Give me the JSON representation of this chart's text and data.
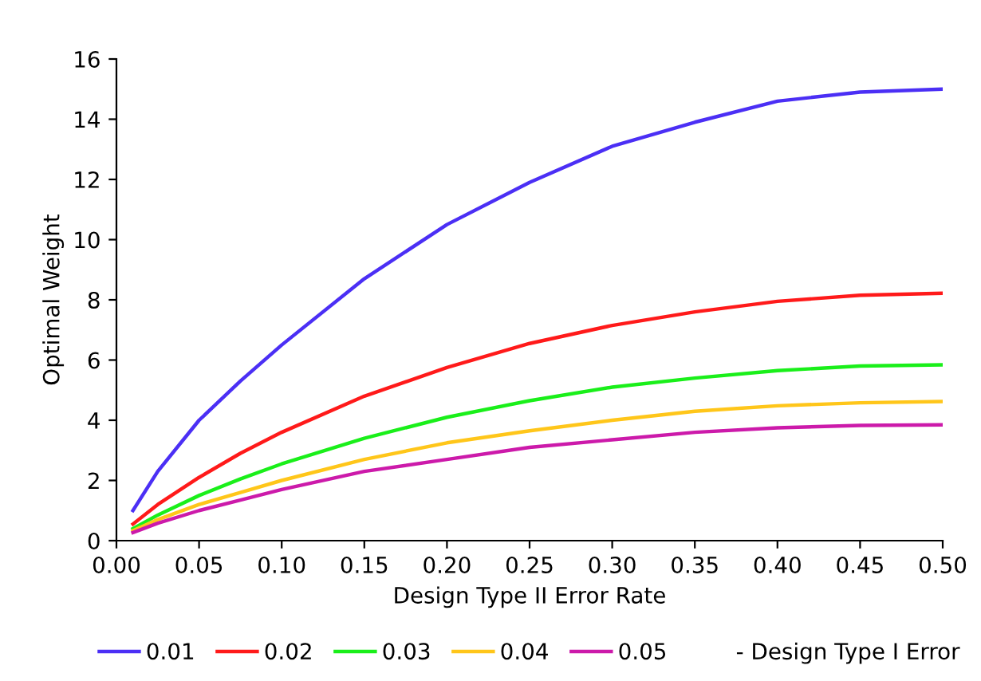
{
  "chart_data": {
    "type": "line",
    "xlabel": "Design Type II Error Rate",
    "ylabel": "Optimal Weight",
    "legend_title": "- Design Type I Error",
    "legend": "bottom",
    "grid": false,
    "marker": "none",
    "line_style": "solid",
    "x": [
      0.01,
      0.025,
      0.05,
      0.075,
      0.1,
      0.15,
      0.2,
      0.25,
      0.3,
      0.35,
      0.4,
      0.45,
      0.5
    ],
    "xlim": [
      0,
      0.5
    ],
    "xticks": [
      {
        "value": 0,
        "label": "0.00"
      },
      {
        "value": 0.05,
        "label": "0.05"
      },
      {
        "value": 0.1,
        "label": "0.10"
      },
      {
        "value": 0.15,
        "label": "0.15"
      },
      {
        "value": 0.2,
        "label": "0.20"
      },
      {
        "value": 0.25,
        "label": "0.25"
      },
      {
        "value": 0.3,
        "label": "0.30"
      },
      {
        "value": 0.35,
        "label": "0.35"
      },
      {
        "value": 0.4,
        "label": "0.40"
      },
      {
        "value": 0.45,
        "label": "0.45"
      },
      {
        "value": 0.5,
        "label": "0.50"
      }
    ],
    "ylim": [
      0,
      16
    ],
    "yticks": [
      0,
      2,
      4,
      6,
      8,
      10,
      12,
      14,
      16
    ],
    "series": [
      {
        "name": "0.01",
        "color": "#4b2ff5",
        "values": [
          1.0,
          2.3,
          4.0,
          5.3,
          6.5,
          8.7,
          10.5,
          11.9,
          13.1,
          13.9,
          14.6,
          14.9,
          15.0
        ]
      },
      {
        "name": "0.02",
        "color": "#ff1a1a",
        "values": [
          0.55,
          1.2,
          2.1,
          2.9,
          3.6,
          4.8,
          5.75,
          6.55,
          7.15,
          7.6,
          7.95,
          8.15,
          8.22
        ]
      },
      {
        "name": "0.03",
        "color": "#1aef1a",
        "values": [
          0.4,
          0.85,
          1.5,
          2.05,
          2.55,
          3.4,
          4.1,
          4.65,
          5.1,
          5.4,
          5.65,
          5.8,
          5.84
        ]
      },
      {
        "name": "0.04",
        "color": "#ffc61a",
        "values": [
          0.33,
          0.7,
          1.2,
          1.6,
          2.0,
          2.7,
          3.25,
          3.65,
          4.0,
          4.3,
          4.48,
          4.58,
          4.62
        ]
      },
      {
        "name": "0.05",
        "color": "#cc1aaa",
        "values": [
          0.27,
          0.58,
          1.0,
          1.35,
          1.7,
          2.3,
          2.7,
          3.1,
          3.35,
          3.6,
          3.75,
          3.83,
          3.85
        ]
      }
    ]
  }
}
